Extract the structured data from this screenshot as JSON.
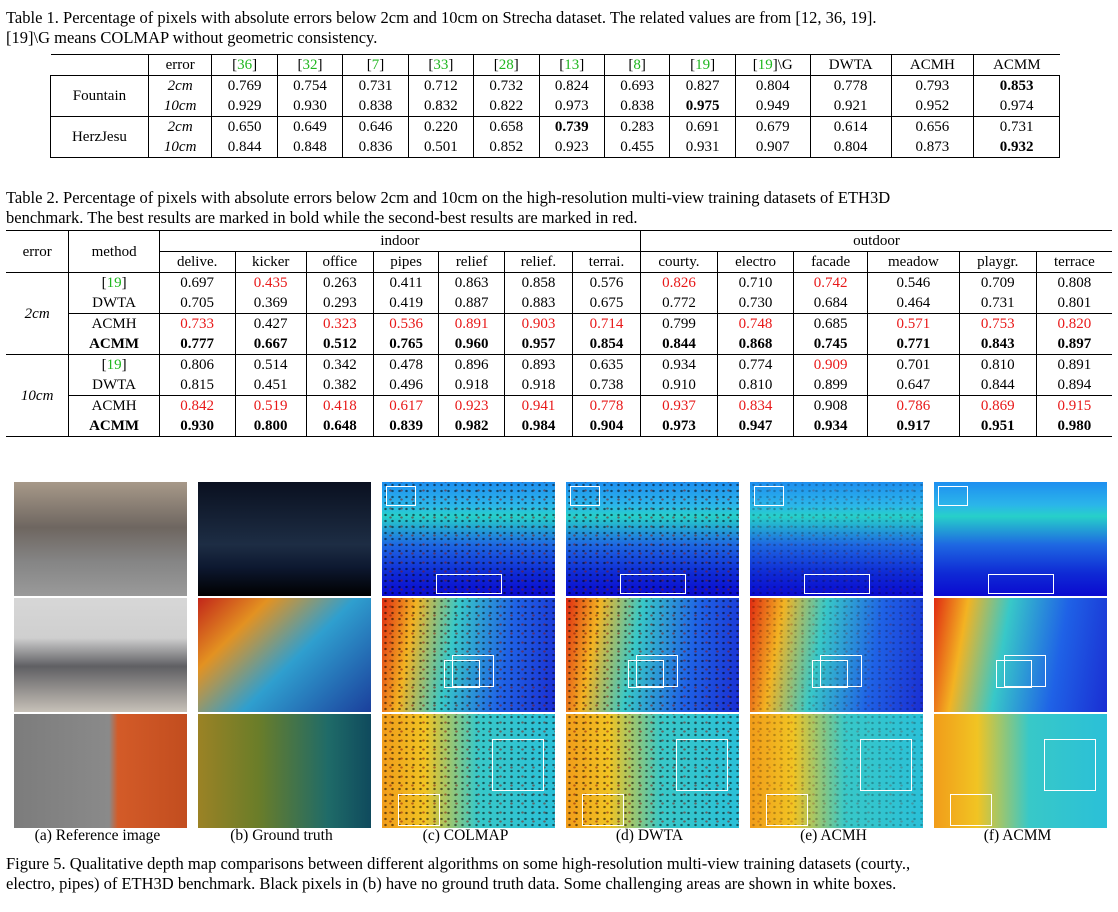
{
  "table1": {
    "caption_line1": "Table 1. Percentage of pixels with absolute errors below 2cm and 10cm on Strecha dataset. The related values are from [12, 36, 19].",
    "caption_line2": "[19]\\G means COLMAP without geometric consistency.",
    "headers": [
      "error",
      "[36]",
      "[32]",
      "[7]",
      "[33]",
      "[28]",
      "[13]",
      "[8]",
      "[19]",
      "[19]\\G",
      "DWTA",
      "ACMH",
      "ACMM"
    ],
    "rows": [
      {
        "dataset": "Fountain",
        "error": "2cm",
        "values": [
          "0.769",
          "0.754",
          "0.731",
          "0.712",
          "0.732",
          "0.824",
          "0.693",
          "0.827",
          "0.804",
          "0.778",
          "0.793",
          "0.853"
        ]
      },
      {
        "dataset": "",
        "error": "10cm",
        "values": [
          "0.929",
          "0.930",
          "0.838",
          "0.832",
          "0.822",
          "0.973",
          "0.838",
          "0.975",
          "0.949",
          "0.921",
          "0.952",
          "0.974"
        ]
      },
      {
        "dataset": "HerzJesu",
        "error": "2cm",
        "values": [
          "0.650",
          "0.649",
          "0.646",
          "0.220",
          "0.658",
          "0.739",
          "0.283",
          "0.691",
          "0.679",
          "0.614",
          "0.656",
          "0.731"
        ]
      },
      {
        "dataset": "",
        "error": "10cm",
        "values": [
          "0.844",
          "0.848",
          "0.836",
          "0.501",
          "0.852",
          "0.923",
          "0.455",
          "0.931",
          "0.907",
          "0.804",
          "0.873",
          "0.932"
        ]
      }
    ]
  },
  "table2": {
    "caption_line1": "Table 2. Percentage of pixels with absolute errors below 2cm and 10cm on the high-resolution multi-view training datasets of ETH3D",
    "caption_line2": "benchmark. The best results are marked in bold while the second-best results are marked in red.",
    "col_error": "error",
    "col_method": "method",
    "group_indoor": "indoor",
    "group_outdoor": "outdoor",
    "datasets": [
      "delive.",
      "kicker",
      "office",
      "pipes",
      "relief",
      "relief.",
      "terrai.",
      "courty.",
      "electro",
      "facade",
      "meadow",
      "playgr.",
      "terrace"
    ],
    "blocks": [
      {
        "error": "2cm",
        "rows": [
          {
            "method": "[19]",
            "values": [
              "0.697",
              "0.435",
              "0.263",
              "0.411",
              "0.863",
              "0.858",
              "0.576",
              "0.826",
              "0.710",
              "0.742",
              "0.546",
              "0.709",
              "0.808"
            ]
          },
          {
            "method": "DWTA",
            "values": [
              "0.705",
              "0.369",
              "0.293",
              "0.419",
              "0.887",
              "0.883",
              "0.675",
              "0.772",
              "0.730",
              "0.684",
              "0.464",
              "0.731",
              "0.801"
            ]
          },
          {
            "method": "ACMH",
            "values": [
              "0.733",
              "0.427",
              "0.323",
              "0.536",
              "0.891",
              "0.903",
              "0.714",
              "0.799",
              "0.748",
              "0.685",
              "0.571",
              "0.753",
              "0.820"
            ]
          },
          {
            "method": "ACMM",
            "values": [
              "0.777",
              "0.667",
              "0.512",
              "0.765",
              "0.960",
              "0.957",
              "0.854",
              "0.844",
              "0.868",
              "0.745",
              "0.771",
              "0.843",
              "0.897"
            ]
          }
        ]
      },
      {
        "error": "10cm",
        "rows": [
          {
            "method": "[19]",
            "values": [
              "0.806",
              "0.514",
              "0.342",
              "0.478",
              "0.896",
              "0.893",
              "0.635",
              "0.934",
              "0.774",
              "0.909",
              "0.701",
              "0.810",
              "0.891"
            ]
          },
          {
            "method": "DWTA",
            "values": [
              "0.815",
              "0.451",
              "0.382",
              "0.496",
              "0.918",
              "0.918",
              "0.738",
              "0.910",
              "0.810",
              "0.899",
              "0.647",
              "0.844",
              "0.894"
            ]
          },
          {
            "method": "ACMH",
            "values": [
              "0.842",
              "0.519",
              "0.418",
              "0.617",
              "0.923",
              "0.941",
              "0.778",
              "0.937",
              "0.834",
              "0.908",
              "0.786",
              "0.869",
              "0.915"
            ]
          },
          {
            "method": "ACMM",
            "values": [
              "0.930",
              "0.800",
              "0.648",
              "0.839",
              "0.982",
              "0.984",
              "0.904",
              "0.973",
              "0.947",
              "0.934",
              "0.917",
              "0.951",
              "0.980"
            ]
          }
        ]
      }
    ]
  },
  "figure": {
    "sublabels": [
      "(a)  Reference image",
      "(b)  Ground truth",
      "(c)  COLMAP",
      "(d)  DWTA",
      "(e)  ACMH",
      "(f)  ACMM"
    ],
    "caption_line1": "Figure 5. Qualitative depth map comparisons between different algorithms on some high-resolution multi-view training datasets (courty.,",
    "caption_line2": "electro, pipes) of ETH3D benchmark. Black pixels in (b) have no ground truth data. Some challenging areas are shown in white boxes."
  },
  "colors": {
    "citation_green": "#1fb71f",
    "second_best_red": "#e81818"
  }
}
